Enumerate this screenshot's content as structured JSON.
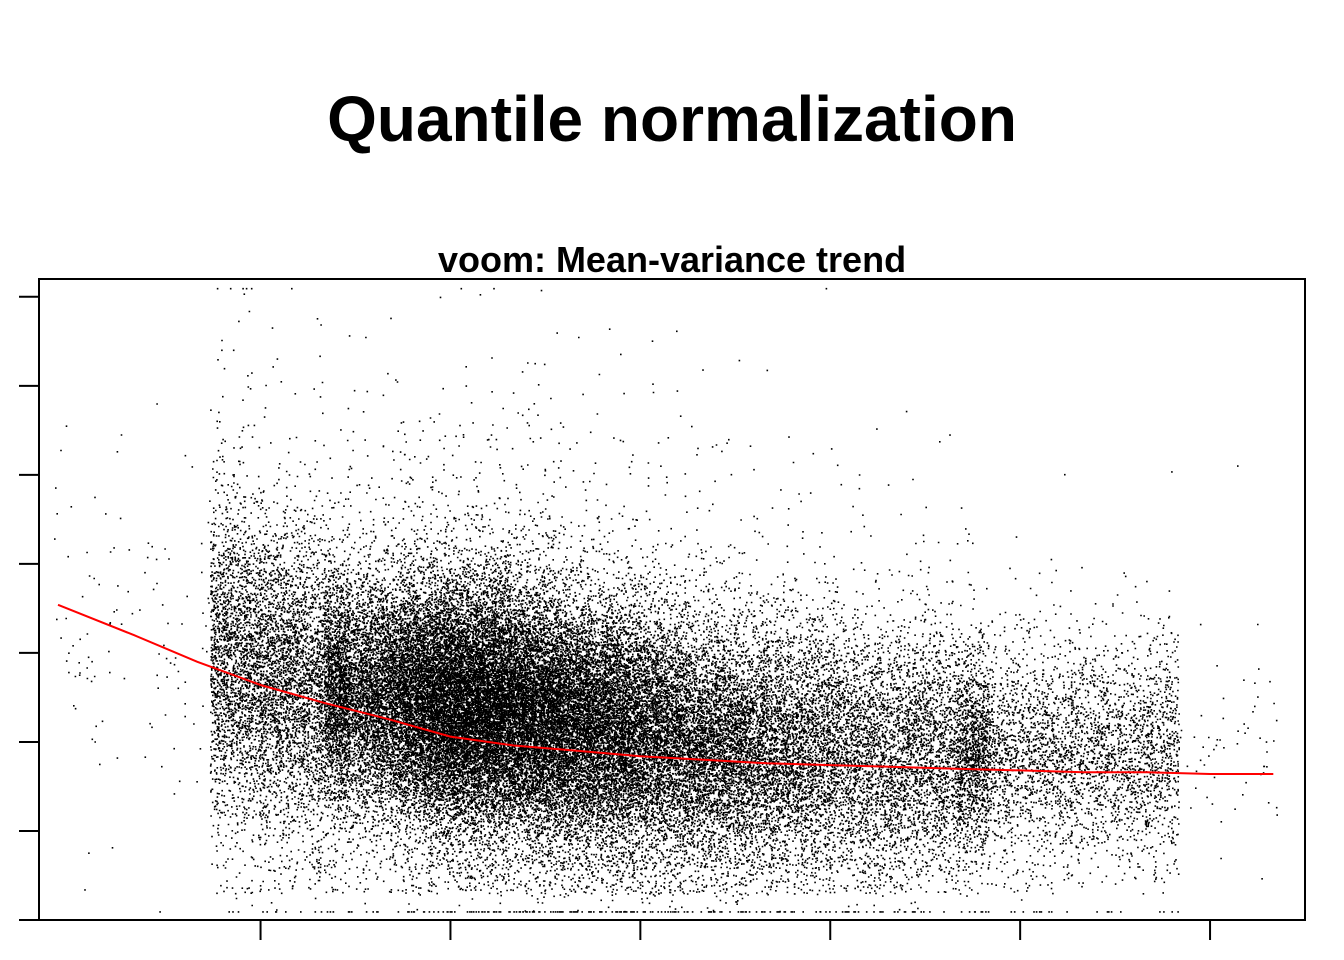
{
  "page_title": "Quantile normalization",
  "chart_data": {
    "type": "scatter",
    "title": "voom: Mean-variance trend",
    "xlabel": "",
    "ylabel": "",
    "xlim": [
      -1.5,
      18.5
    ],
    "ylim": [
      0.0,
      3.6
    ],
    "x_ticks": [
      2,
      5,
      8,
      11,
      14,
      17
    ],
    "y_ticks": [
      0.0,
      0.5,
      1.0,
      1.5,
      2.0,
      2.5,
      3.0,
      3.5
    ],
    "tick_labels_visible": false,
    "grid": false,
    "colors": {
      "points": "#000000",
      "trend": "#ff0000",
      "frame": "#000000"
    },
    "point_cloud": {
      "n_points": 60000,
      "x_range": [
        -1.3,
        18.2
      ],
      "dense_core": {
        "x_range": [
          3.0,
          13.5
        ],
        "y_center_at_x": [
          [
            3.0,
            1.28
          ],
          [
            6.0,
            1.18
          ],
          [
            9.0,
            1.0
          ],
          [
            12.0,
            0.92
          ],
          [
            13.5,
            0.95
          ]
        ],
        "y_spread": 0.42
      },
      "y_min_observed": 0.05,
      "y_max_observed": 3.55
    },
    "series": [
      {
        "name": "lowess trend",
        "type": "line",
        "color": "#ff0000",
        "x": [
          -1.2,
          0,
          1,
          2,
          3,
          4,
          5,
          6,
          7,
          8,
          9,
          10,
          11,
          12,
          13,
          14,
          15,
          16,
          17,
          18
        ],
        "y": [
          1.77,
          1.6,
          1.45,
          1.32,
          1.22,
          1.13,
          1.03,
          0.98,
          0.95,
          0.92,
          0.9,
          0.88,
          0.87,
          0.86,
          0.85,
          0.84,
          0.83,
          0.83,
          0.82,
          0.82
        ]
      }
    ]
  }
}
